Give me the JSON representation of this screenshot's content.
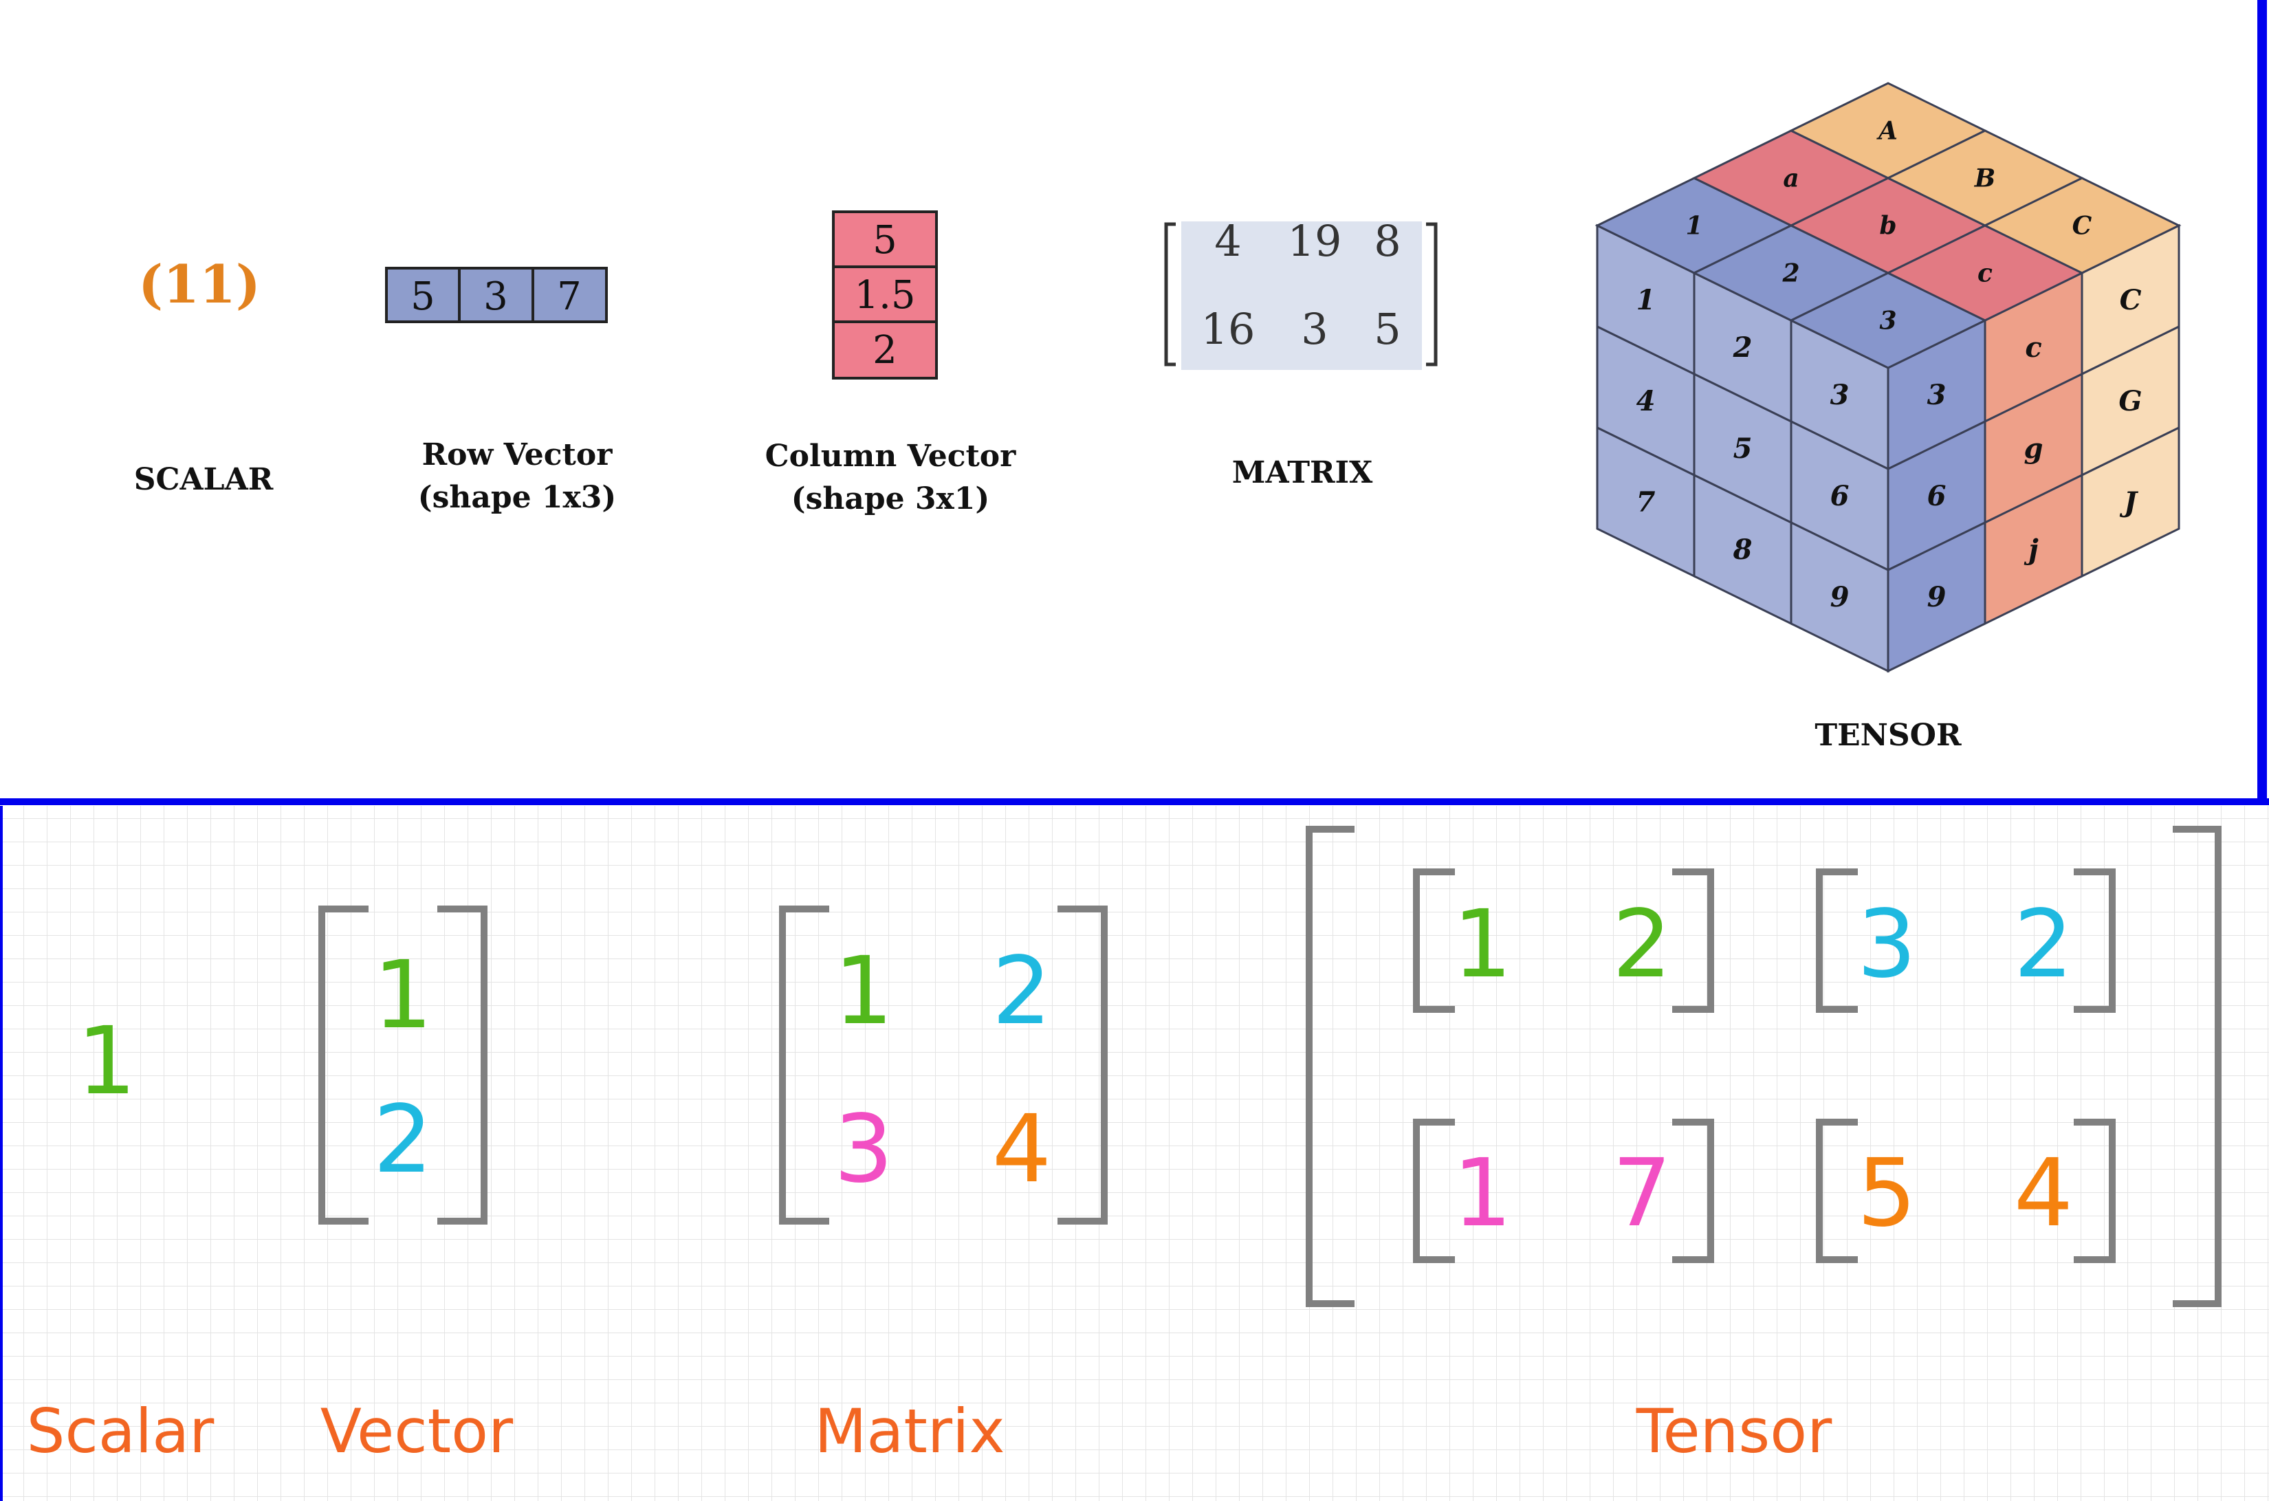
{
  "colors": {
    "frame_blue": "#0000ee",
    "scalar_orange": "#e2821f",
    "vector_blue": "#8e9dcc",
    "column_pink": "#ef7e8e",
    "matrix_bg": "#dde3ef",
    "cube_blue_front": "#a5b0d8",
    "cube_blue_top": "#8796cc",
    "cube_blue_side": "#8b99cf",
    "cube_red_top": "#e27a83",
    "cube_salmon_side": "#eea089",
    "cube_orange_top": "#f2c087",
    "cube_orange_side": "#f9dcb8",
    "label_orange": "#f26522",
    "green": "#52b81c",
    "cyan": "#1fb9e0",
    "magenta": "#f24fc3",
    "orange": "#f5820f",
    "bracket_gray": "#808080",
    "grid_line": "#e2e2e2"
  },
  "top": {
    "scalar": {
      "value": "(11)",
      "label": "SCALAR"
    },
    "row_vector": {
      "values": [
        "5",
        "3",
        "7"
      ],
      "label_line1": "Row Vector",
      "label_line2": "(shape 1x3)"
    },
    "column_vector": {
      "values": [
        "5",
        "1.5",
        "2"
      ],
      "label_line1": "Column Vector",
      "label_line2": "(shape 3x1)"
    },
    "matrix": {
      "rows": [
        [
          "4",
          "19",
          "8"
        ],
        [
          "16",
          "3",
          "5"
        ]
      ],
      "label": "MATRIX"
    },
    "tensor": {
      "label": "TENSOR",
      "top_rows": [
        [
          "1",
          "2",
          "3"
        ],
        [
          "a",
          "b",
          "c"
        ],
        [
          "A",
          "B",
          "C"
        ]
      ],
      "front": [
        [
          "1",
          "2",
          "3"
        ],
        [
          "4",
          "5",
          "6"
        ],
        [
          "7",
          "8",
          "9"
        ]
      ],
      "side": [
        [
          "3",
          "c",
          "C"
        ],
        [
          "6",
          "g",
          "G"
        ],
        [
          "9",
          "j",
          "J"
        ]
      ]
    }
  },
  "bottom": {
    "scalar": {
      "value": "1",
      "label": "Scalar"
    },
    "vector": {
      "values": [
        "1",
        "2"
      ],
      "label": "Vector"
    },
    "matrix": {
      "values": [
        "1",
        "2",
        "3",
        "4"
      ],
      "label": "Matrix"
    },
    "tensor": {
      "blocks": [
        [
          "1",
          "2"
        ],
        [
          "3",
          "2"
        ],
        [
          "1",
          "7"
        ],
        [
          "5",
          "4"
        ]
      ],
      "label": "Tensor"
    }
  }
}
